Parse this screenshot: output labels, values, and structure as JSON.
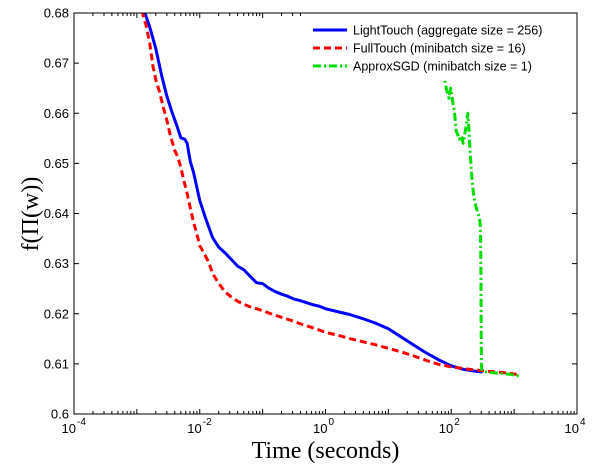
{
  "chart_data": {
    "type": "line",
    "title": "",
    "xlabel": "Time (seconds)",
    "ylabel": "f(Π(w))",
    "xscale": "log",
    "xlim": [
      0.0001,
      10000
    ],
    "ylim": [
      0.6,
      0.68
    ],
    "grid": false,
    "legend_position": "top-right",
    "x_ticks": [
      {
        "value": 0.0001,
        "base": "10",
        "exp": "-4"
      },
      {
        "value": 0.01,
        "base": "10",
        "exp": "-2"
      },
      {
        "value": 1,
        "base": "10",
        "exp": "0"
      },
      {
        "value": 100,
        "base": "10",
        "exp": "2"
      },
      {
        "value": 10000,
        "base": "10",
        "exp": "4"
      }
    ],
    "y_ticks": [
      "0.6",
      "0.61",
      "0.62",
      "0.63",
      "0.64",
      "0.65",
      "0.66",
      "0.67",
      "0.68"
    ],
    "series": [
      {
        "name": "LightTouch (aggregate size = 256)",
        "color": "#0000ff",
        "dash": "solid",
        "points": [
          [
            0.0013,
            0.6805
          ],
          [
            0.0016,
            0.6772
          ],
          [
            0.002,
            0.6729
          ],
          [
            0.0025,
            0.6673
          ],
          [
            0.003,
            0.6634
          ],
          [
            0.0036,
            0.6603
          ],
          [
            0.0043,
            0.6576
          ],
          [
            0.005,
            0.6551
          ],
          [
            0.0058,
            0.6548
          ],
          [
            0.0063,
            0.654
          ],
          [
            0.0071,
            0.6503
          ],
          [
            0.008,
            0.6481
          ],
          [
            0.009,
            0.6452
          ],
          [
            0.01,
            0.6426
          ],
          [
            0.0125,
            0.6389
          ],
          [
            0.016,
            0.6352
          ],
          [
            0.02,
            0.6333
          ],
          [
            0.025,
            0.6322
          ],
          [
            0.032,
            0.6308
          ],
          [
            0.04,
            0.6295
          ],
          [
            0.05,
            0.6288
          ],
          [
            0.063,
            0.6275
          ],
          [
            0.08,
            0.6262
          ],
          [
            0.1,
            0.626
          ],
          [
            0.126,
            0.6251
          ],
          [
            0.16,
            0.6244
          ],
          [
            0.2,
            0.6239
          ],
          [
            0.25,
            0.6235
          ],
          [
            0.32,
            0.6229
          ],
          [
            0.4,
            0.6226
          ],
          [
            0.5,
            0.6222
          ],
          [
            0.63,
            0.6218
          ],
          [
            0.8,
            0.6215
          ],
          [
            1,
            0.621
          ],
          [
            1.58,
            0.6204
          ],
          [
            2.51,
            0.6198
          ],
          [
            3.98,
            0.619
          ],
          [
            6.31,
            0.6181
          ],
          [
            10,
            0.617
          ],
          [
            15.8,
            0.6154
          ],
          [
            25.1,
            0.6138
          ],
          [
            39.8,
            0.6122
          ],
          [
            63.1,
            0.6108
          ],
          [
            100,
            0.6096
          ],
          [
            158,
            0.6089
          ],
          [
            251,
            0.6085
          ],
          [
            316,
            0.6084
          ]
        ]
      },
      {
        "name": "FullTouch (minibatch size = 16)",
        "color": "#ff0000",
        "dash": "dashed",
        "points": [
          [
            0.0012,
            0.6805
          ],
          [
            0.0014,
            0.6775
          ],
          [
            0.0016,
            0.674
          ],
          [
            0.0018,
            0.6694
          ],
          [
            0.002,
            0.6667
          ],
          [
            0.0023,
            0.6642
          ],
          [
            0.0026,
            0.6614
          ],
          [
            0.003,
            0.6586
          ],
          [
            0.0034,
            0.6556
          ],
          [
            0.004,
            0.6526
          ],
          [
            0.0045,
            0.6512
          ],
          [
            0.005,
            0.6492
          ],
          [
            0.0056,
            0.6465
          ],
          [
            0.0063,
            0.644
          ],
          [
            0.0071,
            0.641
          ],
          [
            0.008,
            0.6382
          ],
          [
            0.009,
            0.6359
          ],
          [
            0.01,
            0.6336
          ],
          [
            0.012,
            0.6318
          ],
          [
            0.014,
            0.6302
          ],
          [
            0.016,
            0.628
          ],
          [
            0.02,
            0.6261
          ],
          [
            0.025,
            0.6244
          ],
          [
            0.032,
            0.6233
          ],
          [
            0.04,
            0.6225
          ],
          [
            0.05,
            0.6219
          ],
          [
            0.063,
            0.6214
          ],
          [
            0.08,
            0.621
          ],
          [
            0.1,
            0.6206
          ],
          [
            0.158,
            0.6197
          ],
          [
            0.251,
            0.6189
          ],
          [
            0.398,
            0.618
          ],
          [
            0.631,
            0.6172
          ],
          [
            1,
            0.6163
          ],
          [
            1.58,
            0.6157
          ],
          [
            2.51,
            0.615
          ],
          [
            3.98,
            0.6144
          ],
          [
            6.31,
            0.6138
          ],
          [
            10,
            0.6131
          ],
          [
            15.8,
            0.6124
          ],
          [
            25.1,
            0.6116
          ],
          [
            39.8,
            0.6107
          ],
          [
            63.1,
            0.6099
          ],
          [
            100,
            0.6094
          ],
          [
            200,
            0.6089
          ],
          [
            398,
            0.6085
          ],
          [
            631,
            0.6083
          ],
          [
            1000,
            0.608
          ],
          [
            1259,
            0.6077
          ]
        ]
      },
      {
        "name": "ApproxSGD (minibatch size = 1)",
        "color": "#00dd00",
        "dash": "dash-dot",
        "points": [
          [
            35,
            0.6805
          ],
          [
            40,
            0.6795
          ],
          [
            48,
            0.6784
          ],
          [
            55,
            0.676
          ],
          [
            63,
            0.6725
          ],
          [
            70,
            0.6692
          ],
          [
            77,
            0.6672
          ],
          [
            85,
            0.6645
          ],
          [
            92,
            0.663
          ],
          [
            98,
            0.665
          ],
          [
            105,
            0.6625
          ],
          [
            112,
            0.6605
          ],
          [
            120,
            0.6565
          ],
          [
            135,
            0.6548
          ],
          [
            145,
            0.6555
          ],
          [
            155,
            0.654
          ],
          [
            165,
            0.656
          ],
          [
            175,
            0.6578
          ],
          [
            183,
            0.66
          ],
          [
            190,
            0.6572
          ],
          [
            198,
            0.653
          ],
          [
            210,
            0.648
          ],
          [
            225,
            0.644
          ],
          [
            245,
            0.6415
          ],
          [
            262,
            0.6403
          ],
          [
            275,
            0.6395
          ],
          [
            283,
            0.6388
          ],
          [
            290,
            0.6375
          ],
          [
            293,
            0.635
          ],
          [
            296,
            0.63
          ],
          [
            298,
            0.622
          ],
          [
            300,
            0.614
          ],
          [
            302,
            0.61
          ],
          [
            305,
            0.6088
          ],
          [
            320,
            0.6085
          ],
          [
            400,
            0.6083
          ],
          [
            631,
            0.6081
          ],
          [
            1000,
            0.6078
          ],
          [
            1259,
            0.6075
          ]
        ]
      }
    ]
  }
}
